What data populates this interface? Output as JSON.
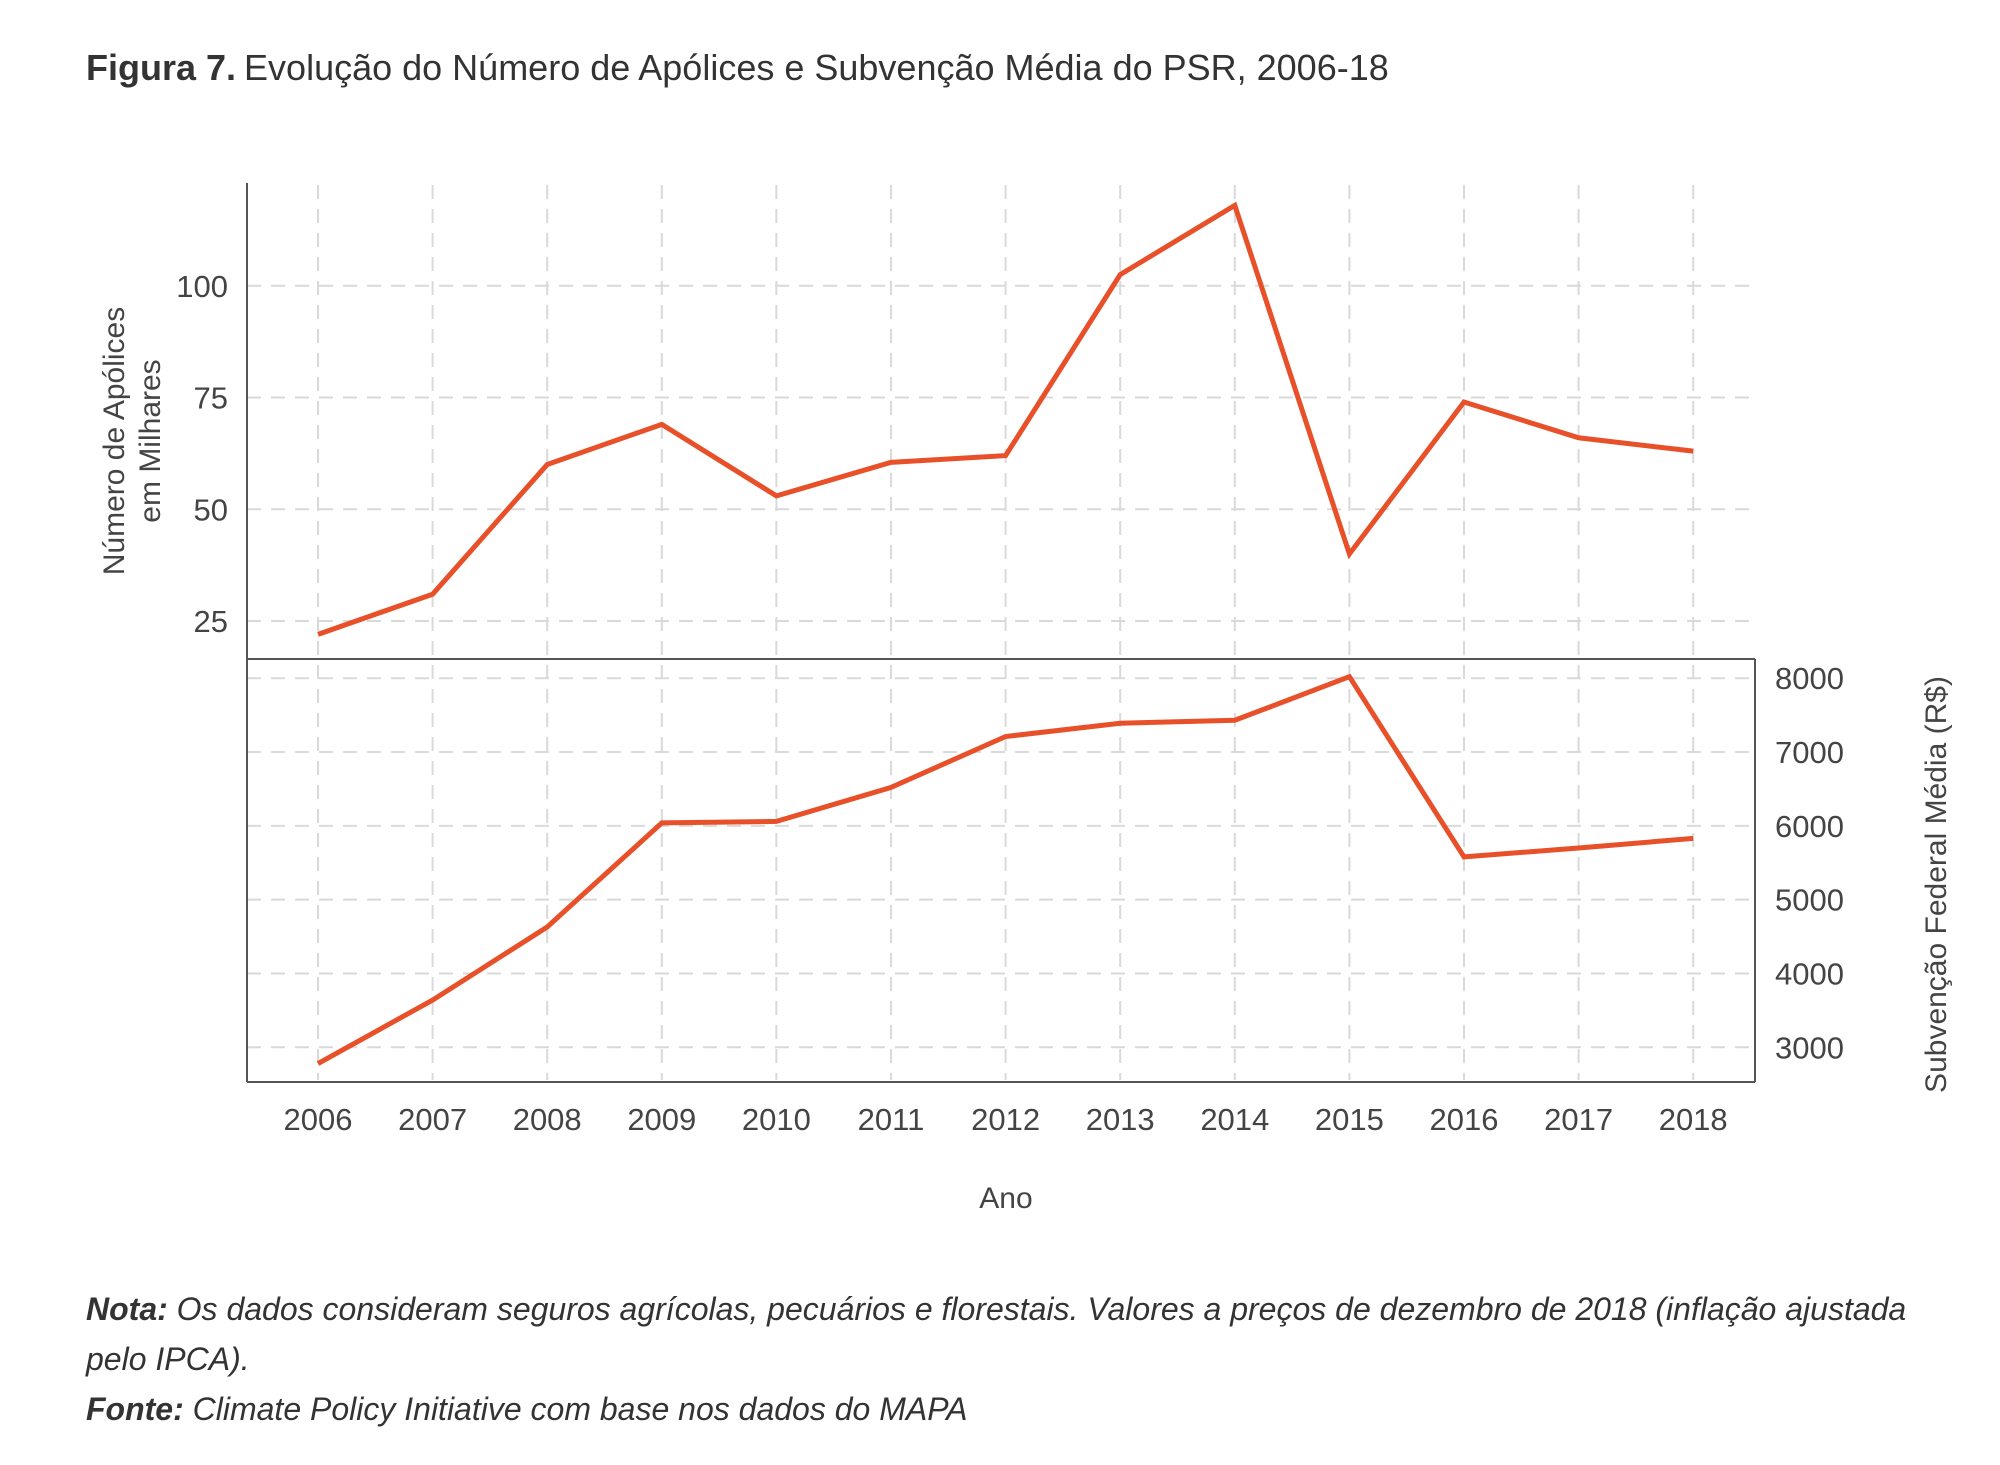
{
  "figure": {
    "label": "Figura 7.",
    "title": "Evolução do Número de Apólices e Subvenção Média do PSR, 2006-18"
  },
  "chart_data": {
    "type": "line",
    "line_color": "#e8502a",
    "grid": true,
    "grid_style": "dashed",
    "x": [
      "2006",
      "2007",
      "2008",
      "2009",
      "2010",
      "2011",
      "2012",
      "2013",
      "2014",
      "2015",
      "2016",
      "2017",
      "2018"
    ],
    "xlabel": "Ano",
    "panels": [
      {
        "position": "top",
        "ylabel": "Número de Apólices\nem Milhares",
        "ylabel_lines": [
          "Número de Apólices",
          "em Milhares"
        ],
        "axis_side": "left",
        "yticks": [
          25,
          50,
          75,
          100
        ],
        "ylim": [
          16.5,
          123
        ],
        "values": [
          22,
          31,
          60,
          69,
          53,
          60.5,
          62,
          102.5,
          118,
          40,
          74,
          66,
          63
        ]
      },
      {
        "position": "bottom",
        "ylabel": "Subvenção Federal Média (R$)",
        "axis_side": "right",
        "yticks": [
          3000,
          4000,
          5000,
          6000,
          7000,
          8000
        ],
        "ylim": [
          2530,
          8260
        ],
        "values": [
          2780,
          3640,
          4630,
          6040,
          6060,
          6520,
          7210,
          7390,
          7430,
          8020,
          5580,
          5700,
          5830
        ]
      }
    ]
  },
  "notes": {
    "nota_label": "Nota:",
    "nota_text": "Os dados consideram seguros agrícolas, pecuários e florestais. Valores a preços de dezembro de 2018 (inflação ajustada pelo IPCA).",
    "fonte_label": "Fonte:",
    "fonte_text": "Climate Policy Initiative com base nos dados do MAPA"
  }
}
